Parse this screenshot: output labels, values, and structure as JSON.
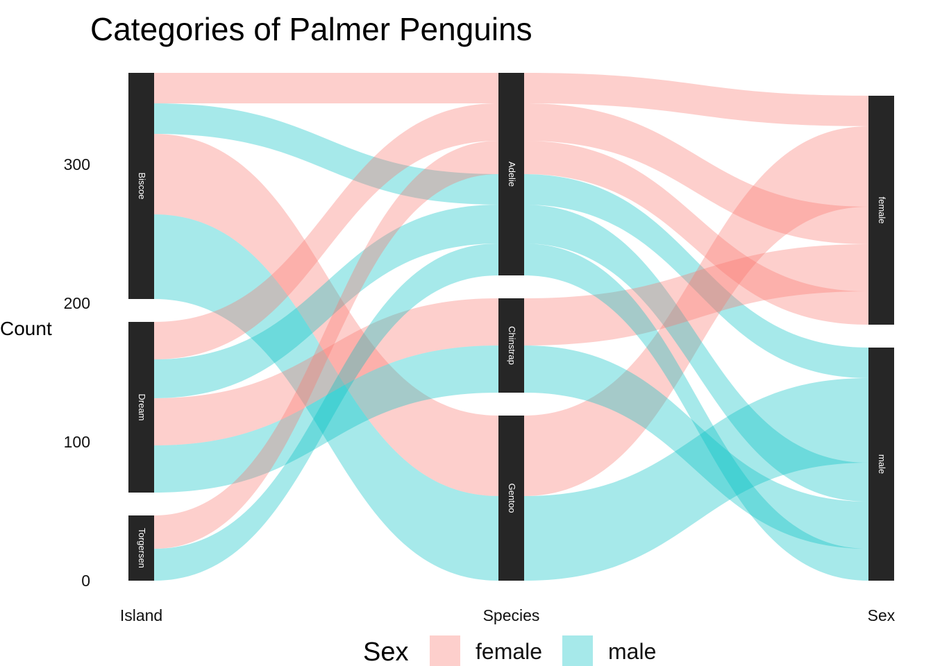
{
  "chart_data": {
    "type": "alluvial",
    "title": "Categories of Palmer Penguins",
    "ylabel": "Count",
    "ylim": [
      0,
      366
    ],
    "yticks": [
      0,
      100,
      200,
      300
    ],
    "axes": [
      "Island",
      "Species",
      "Sex"
    ],
    "strata": {
      "Island": [
        "Biscoe",
        "Dream",
        "Torgersen"
      ],
      "Species": [
        "Adelie",
        "Chinstrap",
        "Gentoo"
      ],
      "Sex": [
        "female",
        "male"
      ]
    },
    "flows": [
      {
        "Island": "Biscoe",
        "Species": "Adelie",
        "Sex": "female",
        "count": 22
      },
      {
        "Island": "Biscoe",
        "Species": "Adelie",
        "Sex": "male",
        "count": 22
      },
      {
        "Island": "Biscoe",
        "Species": "Gentoo",
        "Sex": "female",
        "count": 58
      },
      {
        "Island": "Biscoe",
        "Species": "Gentoo",
        "Sex": "male",
        "count": 61
      },
      {
        "Island": "Dream",
        "Species": "Adelie",
        "Sex": "female",
        "count": 27
      },
      {
        "Island": "Dream",
        "Species": "Adelie",
        "Sex": "male",
        "count": 28
      },
      {
        "Island": "Dream",
        "Species": "Chinstrap",
        "Sex": "female",
        "count": 34
      },
      {
        "Island": "Dream",
        "Species": "Chinstrap",
        "Sex": "male",
        "count": 34
      },
      {
        "Island": "Torgersen",
        "Species": "Adelie",
        "Sex": "female",
        "count": 24
      },
      {
        "Island": "Torgersen",
        "Species": "Adelie",
        "Sex": "male",
        "count": 23
      }
    ],
    "legend": {
      "title": "Sex",
      "position": "bottom",
      "items": [
        {
          "label": "female",
          "color": "#F8766D"
        },
        {
          "label": "male",
          "color": "#00BFC4"
        }
      ]
    },
    "stratum_color": "#262626",
    "grid": false
  }
}
